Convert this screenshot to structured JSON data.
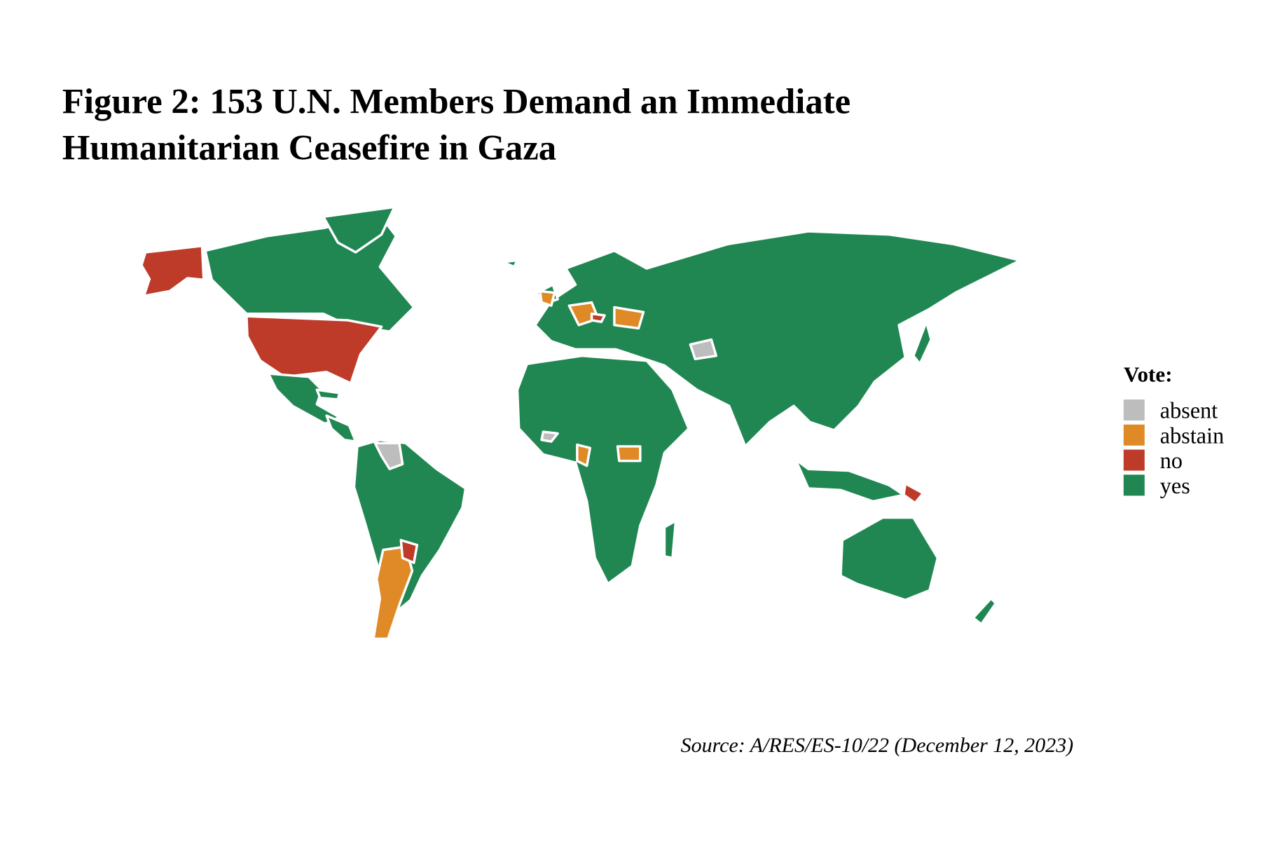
{
  "title": [
    "Figure 2: 153 U.N. Members Demand an Immediate",
    "Humanitarian Ceasefire in Gaza"
  ],
  "legend": {
    "title": "Vote:",
    "items": [
      {
        "label": "absent",
        "color": "#bdbdbd"
      },
      {
        "label": "abstain",
        "color": "#e08a27"
      },
      {
        "label": "no",
        "color": "#bd3b28"
      },
      {
        "label": "yes",
        "color": "#218752"
      }
    ]
  },
  "source": "Source: A/RES/ES-10/22 (December 12, 2023)"
}
